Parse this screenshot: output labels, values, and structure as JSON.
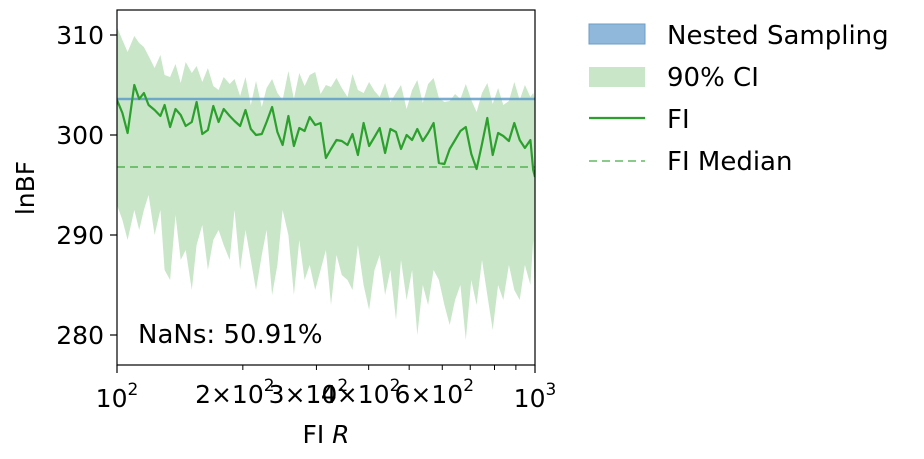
{
  "chart_data": {
    "type": "line",
    "xscale": "log",
    "xlim": [
      100,
      1000
    ],
    "ylim": [
      277,
      312.5
    ],
    "xlabel_prefix": "FI",
    "xlabel_var": "R",
    "ylabel": "lnBF",
    "x_ticks": [
      {
        "x": 100,
        "base": "10",
        "exp": "2"
      },
      {
        "x": 1000,
        "base": "10",
        "exp": "3"
      }
    ],
    "x_minor_ticks": [
      {
        "x": 200,
        "label": "2×10",
        "exp": "2"
      },
      {
        "x": 300,
        "label": "3×10",
        "exp": "2"
      },
      {
        "x": 400,
        "label": "4×10",
        "exp": "2"
      },
      {
        "x": 600,
        "label": "6×10",
        "exp": "2"
      },
      {
        "x": 500,
        "label": "",
        "exp": ""
      },
      {
        "x": 700,
        "label": "",
        "exp": ""
      },
      {
        "x": 800,
        "label": "",
        "exp": ""
      },
      {
        "x": 900,
        "label": "",
        "exp": ""
      }
    ],
    "y_ticks": [
      280,
      290,
      300,
      310
    ],
    "legend": {
      "position": "outside-right",
      "entries": [
        "Nested Sampling",
        "90% CI",
        "FI",
        "FI Median"
      ]
    },
    "nested_sampling": {
      "name": "Nested Sampling",
      "value": 303.6,
      "color": "#1f77b4"
    },
    "fi_median": {
      "name": "FI Median",
      "value": 296.8,
      "color": "#2ca02c"
    },
    "annotation": "NaNs: 50.91%",
    "colors": {
      "fi": "#2ca02c",
      "ci": "#c9e6c9",
      "ns_band": "#8fb8da"
    },
    "series": [
      {
        "name": "FI",
        "x": [
          100,
          103,
          106,
          110,
          113,
          116,
          119,
          123,
          127,
          130,
          134,
          138,
          142,
          146,
          151,
          155,
          160,
          165,
          170,
          175,
          180,
          186,
          191,
          197,
          203,
          209,
          215,
          222,
          228,
          235,
          242,
          249,
          257,
          265,
          273,
          281,
          289,
          298,
          307,
          316,
          325,
          335,
          345,
          356,
          366,
          377,
          389,
          401,
          413,
          425,
          438,
          451,
          465,
          478,
          493,
          508,
          523,
          539,
          555,
          572,
          589,
          607,
          625,
          644,
          663,
          683,
          704,
          725,
          747,
          769,
          792,
          816,
          840,
          866,
          892,
          919,
          946,
          975,
          990,
          1000
        ],
        "y": [
          303.5,
          302.2,
          300.2,
          305.0,
          303.6,
          304.2,
          303.0,
          302.5,
          301.9,
          303.0,
          300.8,
          302.6,
          302.0,
          300.9,
          301.3,
          303.3,
          300.1,
          300.5,
          302.9,
          301.3,
          302.6,
          301.9,
          301.4,
          300.9,
          302.5,
          300.6,
          300.0,
          300.1,
          301.3,
          302.8,
          300.3,
          299.0,
          301.9,
          298.9,
          300.7,
          300.4,
          301.8,
          301.0,
          301.2,
          297.7,
          298.6,
          299.5,
          299.4,
          299.0,
          300.1,
          298.0,
          301.2,
          298.9,
          299.8,
          300.7,
          298.2,
          300.6,
          300.3,
          298.6,
          300.0,
          299.5,
          300.6,
          299.4,
          300.2,
          301.2,
          297.2,
          297.1,
          298.6,
          299.5,
          300.4,
          300.8,
          298.1,
          296.6,
          299.1,
          301.7,
          298.0,
          300.2,
          299.9,
          299.4,
          301.2,
          299.5,
          298.7,
          299.5,
          296.5,
          295.8
        ]
      }
    ],
    "ci_upper": [
      310.8,
      309.5,
      308.3,
      309.9,
      309.2,
      308.8,
      307.9,
      306.7,
      308.0,
      306.0,
      305.8,
      307.1,
      305.2,
      307.3,
      306.2,
      306.9,
      305.3,
      306.7,
      304.9,
      304.5,
      305.8,
      305.1,
      305.6,
      303.9,
      305.8,
      303.0,
      305.4,
      302.8,
      304.7,
      305.6,
      304.2,
      303.5,
      306.4,
      303.6,
      306.2,
      304.9,
      306.0,
      306.3,
      304.1,
      305.0,
      304.8,
      305.7,
      304.7,
      303.8,
      306.1,
      304.5,
      304.2,
      305.3,
      304.4,
      303.8,
      305.2,
      303.3,
      304.2,
      305.0,
      302.6,
      304.5,
      305.5,
      303.2,
      305.1,
      305.7,
      303.7,
      303.3,
      303.4,
      304.1,
      303.6,
      305.1,
      303.5,
      302.3,
      304.2,
      305.2,
      303.1,
      304.7,
      303.0,
      303.4,
      305.3,
      303.5,
      305.0,
      303.8,
      304.2,
      303.5
    ],
    "ci_lower": [
      293.0,
      291.5,
      289.5,
      292.5,
      290.5,
      292.5,
      294.0,
      290.0,
      292.5,
      286.5,
      285.5,
      292.0,
      287.5,
      288.5,
      284.5,
      289.0,
      291.0,
      286.5,
      289.5,
      290.5,
      289.0,
      287.5,
      292.5,
      286.5,
      290.5,
      287.5,
      284.5,
      288.0,
      290.5,
      284.0,
      287.0,
      292.5,
      290.0,
      284.0,
      289.5,
      285.5,
      287.0,
      284.5,
      286.5,
      288.5,
      283.0,
      288.0,
      286.0,
      285.5,
      284.5,
      289.0,
      285.0,
      282.5,
      286.5,
      288.0,
      284.0,
      286.5,
      281.5,
      287.5,
      283.5,
      286.5,
      280.0,
      285.0,
      283.0,
      286.5,
      285.5,
      283.0,
      281.0,
      283.5,
      285.0,
      279.5,
      285.5,
      283.0,
      287.5,
      284.0,
      280.5,
      285.0,
      283.5,
      287.0,
      284.5,
      283.5,
      287.0,
      285.0,
      289.5,
      283.5
    ]
  }
}
